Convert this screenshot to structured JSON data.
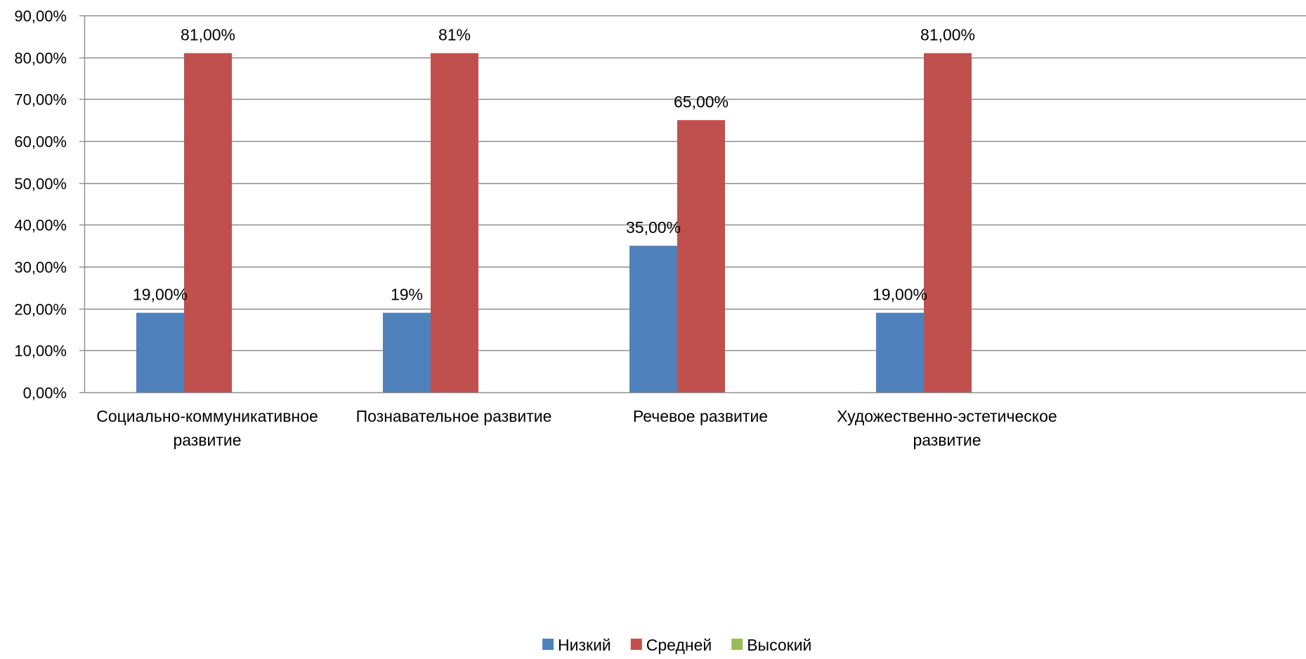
{
  "chart_data": {
    "type": "bar",
    "categories": [
      [
        "Социально-коммуникативное",
        "развитие"
      ],
      [
        "Познавательное развитие"
      ],
      [
        "Речевое развитие"
      ],
      [
        "Художественно-эстетическое",
        "развитие"
      ]
    ],
    "ylim": [
      0,
      0.9
    ],
    "y_ticks": [
      {
        "value": 0.0,
        "label": "0,00%"
      },
      {
        "value": 0.1,
        "label": "10,00%"
      },
      {
        "value": 0.2,
        "label": "20,00%"
      },
      {
        "value": 0.3,
        "label": "30,00%"
      },
      {
        "value": 0.4,
        "label": "40,00%"
      },
      {
        "value": 0.5,
        "label": "50,00%"
      },
      {
        "value": 0.6,
        "label": "60,00%"
      },
      {
        "value": 0.7,
        "label": "70,00%"
      },
      {
        "value": 0.8,
        "label": "80,00%"
      },
      {
        "value": 0.9,
        "label": "90,00%"
      }
    ],
    "grid": true,
    "legend": "bottom",
    "series": [
      {
        "name": "Низкий",
        "color": "#4F81BD",
        "values": [
          0.19,
          0.19,
          0.35,
          0.19
        ],
        "labels": [
          "19,00%",
          "19%",
          "35,00%",
          "19,00%"
        ]
      },
      {
        "name": "Средней",
        "color": "#C0504D",
        "values": [
          0.81,
          0.81,
          0.65,
          0.81
        ],
        "labels": [
          "81,00%",
          "81%",
          "65,00%",
          "81,00%"
        ]
      },
      {
        "name": "Высокий",
        "color": "#9BBB59",
        "values": [
          null,
          null,
          null,
          null
        ],
        "labels": [
          "",
          "",
          "",
          ""
        ]
      }
    ]
  }
}
